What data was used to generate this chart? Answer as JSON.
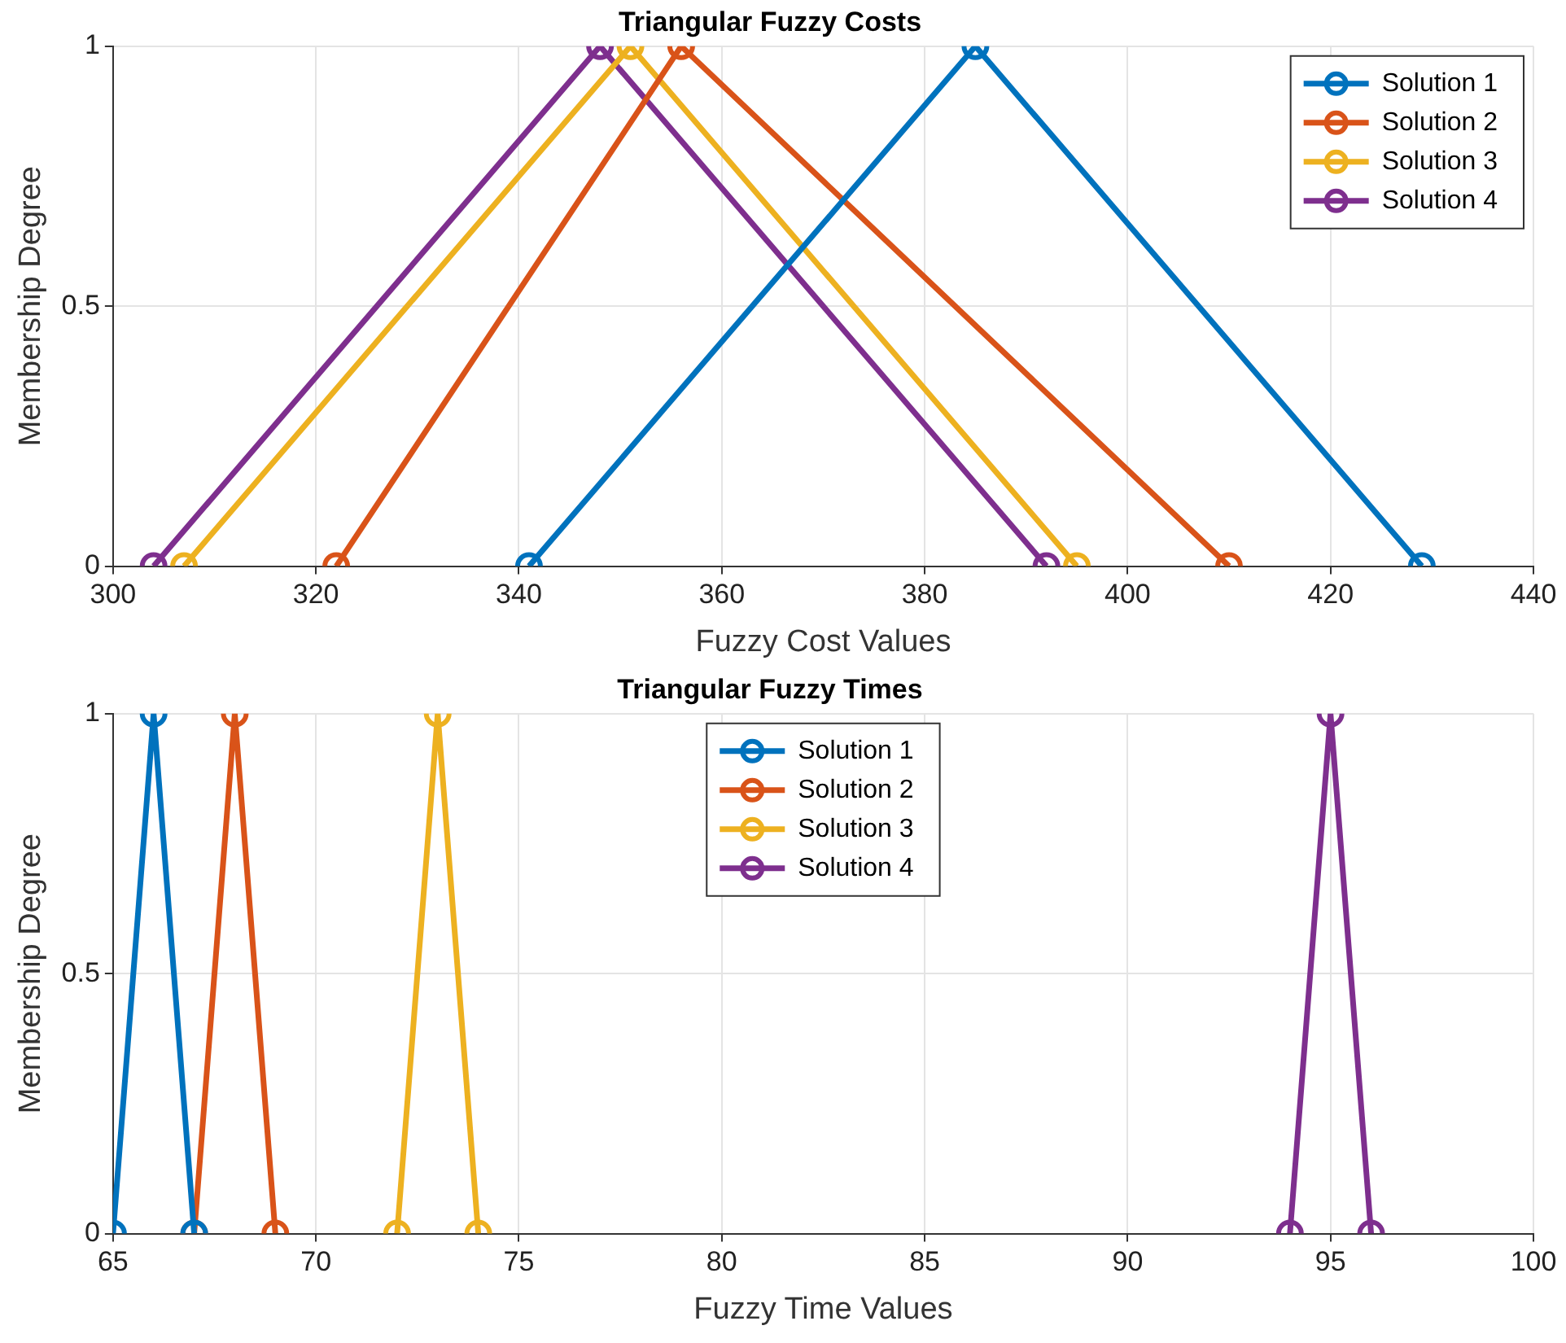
{
  "chart_data": [
    {
      "type": "line",
      "title": "Triangular Fuzzy Costs",
      "xlabel": "Fuzzy Cost Values",
      "ylabel": "Membership Degree",
      "xlim": [
        300,
        440
      ],
      "xticks": [
        300,
        320,
        340,
        360,
        380,
        400,
        420,
        440
      ],
      "ylim": [
        0,
        1
      ],
      "yticks": [
        0,
        0.5,
        1
      ],
      "grid": true,
      "legend": "top right",
      "marker": "circle",
      "line_style": "solid",
      "series": [
        {
          "name": "Solution 1",
          "color": "#0072bd",
          "x": [
            341,
            385,
            429
          ],
          "values": [
            0,
            1,
            0
          ]
        },
        {
          "name": "Solution 2",
          "color": "#d95319",
          "x": [
            322,
            356,
            410
          ],
          "values": [
            0,
            1,
            0
          ]
        },
        {
          "name": "Solution 3",
          "color": "#edb120",
          "x": [
            307,
            351,
            395
          ],
          "values": [
            0,
            1,
            0
          ]
        },
        {
          "name": "Solution 4",
          "color": "#7e2f8e",
          "x": [
            304,
            348,
            392
          ],
          "values": [
            0,
            1,
            0
          ]
        }
      ]
    },
    {
      "type": "line",
      "title": "Triangular Fuzzy Times",
      "xlabel": "Fuzzy Time Values",
      "ylabel": "Membership Degree",
      "xlim": [
        65,
        100
      ],
      "xticks": [
        65,
        70,
        75,
        80,
        85,
        90,
        95,
        100
      ],
      "ylim": [
        0,
        1
      ],
      "yticks": [
        0,
        0.5,
        1
      ],
      "grid": true,
      "legend": "top",
      "marker": "circle",
      "line_style": "solid",
      "series": [
        {
          "name": "Solution 1",
          "color": "#0072bd",
          "x": [
            65,
            66,
            67
          ],
          "values": [
            0,
            1,
            0
          ]
        },
        {
          "name": "Solution 2",
          "color": "#d95319",
          "x": [
            67,
            68,
            69
          ],
          "values": [
            0,
            1,
            0
          ]
        },
        {
          "name": "Solution 3",
          "color": "#edb120",
          "x": [
            72,
            73,
            74
          ],
          "values": [
            0,
            1,
            0
          ]
        },
        {
          "name": "Solution 4",
          "color": "#7e2f8e",
          "x": [
            94,
            95,
            96
          ],
          "values": [
            0,
            1,
            0
          ]
        }
      ]
    }
  ]
}
